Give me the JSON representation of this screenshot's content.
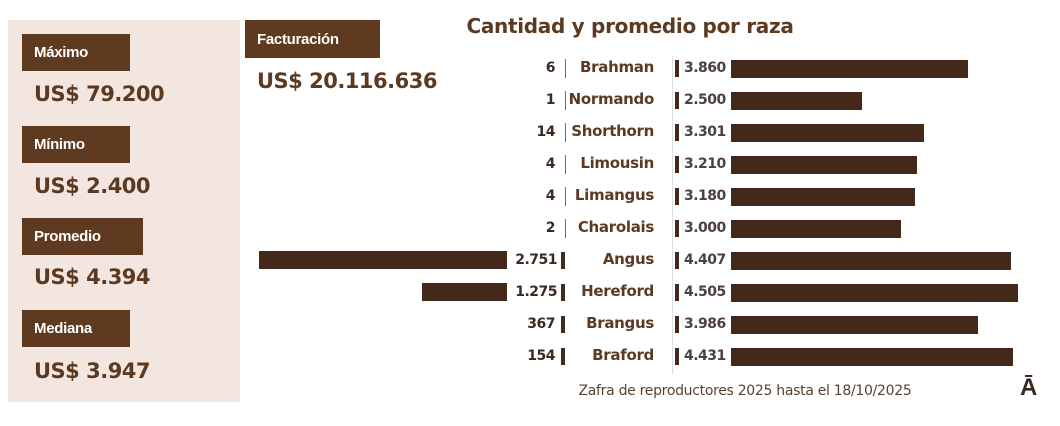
{
  "stats": [
    {
      "label": "Máximo",
      "value": "US$ 79.200"
    },
    {
      "label": "Mínimo",
      "value": "US$ 2.400"
    },
    {
      "label": "Promedio",
      "value": "US$ 4.394"
    },
    {
      "label": "Mediana",
      "value": "US$ 3.947"
    }
  ],
  "billing": {
    "label": "Facturación",
    "value": "US$ 20.116.636"
  },
  "chart_data": {
    "type": "bar",
    "title": "Cantidad y promedio por raza",
    "categories": [
      "Brahman",
      "Normando",
      "Shorthorn",
      "Limousin",
      "Limangus",
      "Charolais",
      "Angus",
      "Hereford",
      "Brangus",
      "Braford"
    ],
    "series": [
      {
        "values": [
          6,
          1,
          14,
          4,
          4,
          2,
          2751,
          1275,
          367,
          154
        ],
        "labels": [
          "6",
          "1",
          "14",
          "4",
          "4",
          "2",
          "2.751",
          "1.275",
          "367",
          "154"
        ]
      },
      {
        "values": [
          3860,
          2500,
          3301,
          3210,
          3180,
          3000,
          4407,
          4505,
          3986,
          4431
        ],
        "labels": [
          "3.860",
          "2.500",
          "3.301",
          "3.210",
          "3.180",
          "3.000",
          "4.407",
          "4.505",
          "3.986",
          "4.431"
        ]
      }
    ],
    "colors": {
      "bar": "#44281a",
      "accent": "#5e3a20",
      "panel": "#f3e6e0"
    }
  },
  "footer": "Zafra de reproductores 2025 hasta el  18/10/2025",
  "logo": "Ā"
}
